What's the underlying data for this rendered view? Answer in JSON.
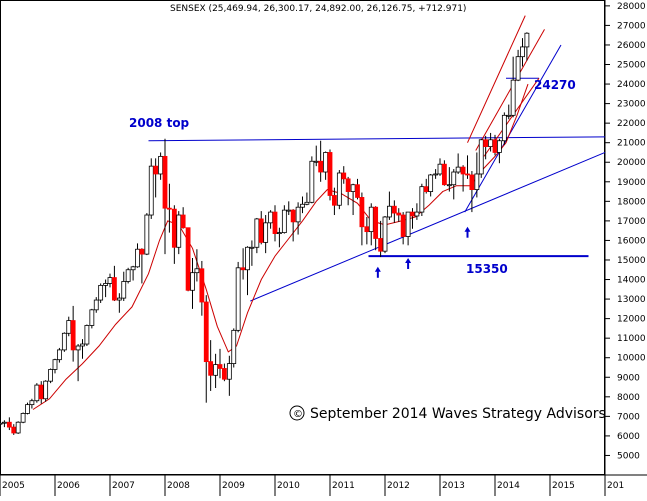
{
  "chart_data": {
    "type": "candlestick",
    "title": "SENSEX (25,469.94, 26,300.17, 24,892.00, 26,126.75, +712.971)",
    "x_ticks": [
      "2005",
      "2006",
      "2007",
      "2008",
      "2009",
      "2010",
      "2011",
      "2012",
      "2013",
      "2014",
      "2015",
      "201"
    ],
    "y_ticks": [
      5000,
      6000,
      7000,
      8000,
      9000,
      10000,
      11000,
      12000,
      13000,
      14000,
      15000,
      16000,
      17000,
      18000,
      19000,
      20000,
      21000,
      22000,
      23000,
      24000,
      25000,
      26000,
      27000,
      28000
    ],
    "ylim": [
      4000,
      28300
    ],
    "xlim": [
      2005.0,
      2016.0
    ],
    "colors": {
      "up": "#ffffff",
      "down": "#ff0000",
      "wick": "#000000",
      "ma": "#cc0000",
      "trend": "#0000cc",
      "channel": "#cc0000"
    },
    "annotations": {
      "top_label": "2008 top",
      "level_label": "24270",
      "support_label": "15350",
      "copyright": "September 2014 Waves Strategy Advisors",
      "copyright_symbol": "©"
    },
    "lines": {
      "top_line": {
        "from": [
          2007.7,
          21100
        ],
        "to": [
          2016.0,
          21300
        ]
      },
      "support_15350": {
        "from": [
          2011.7,
          15200
        ],
        "to": [
          2015.7,
          15200
        ]
      },
      "trend_main": {
        "from": [
          2009.55,
          12900
        ],
        "to": [
          2016.0,
          20500
        ]
      },
      "trend_2013": {
        "from": [
          2013.45,
          17450
        ],
        "to": [
          2015.2,
          26000
        ]
      },
      "level_24270": {
        "from": [
          2014.2,
          24300
        ],
        "to": [
          2014.8,
          24300
        ]
      },
      "channel_upper": {
        "from": [
          2013.5,
          21000
        ],
        "to": [
          2014.55,
          27500
        ]
      },
      "channel_mid": {
        "from": [
          2013.65,
          20600
        ],
        "to": [
          2014.9,
          26800
        ]
      },
      "channel_lower": {
        "from": [
          2013.8,
          20300
        ],
        "to": [
          2014.8,
          24300
        ]
      }
    },
    "arrows": [
      {
        "x": 2011.87,
        "y": 14550
      },
      {
        "x": 2012.42,
        "y": 15000
      },
      {
        "x": 2013.5,
        "y": 16600
      }
    ],
    "ohlc": [
      {
        "t": 2005.0,
        "o": 6600,
        "h": 6720,
        "l": 6250,
        "c": 6650
      },
      {
        "t": 2005.08,
        "o": 6650,
        "h": 6800,
        "l": 6450,
        "c": 6700
      },
      {
        "t": 2005.17,
        "o": 6700,
        "h": 6950,
        "l": 6300,
        "c": 6450
      },
      {
        "t": 2005.25,
        "o": 6450,
        "h": 6600,
        "l": 6050,
        "c": 6150
      },
      {
        "t": 2005.33,
        "o": 6150,
        "h": 6750,
        "l": 6100,
        "c": 6700
      },
      {
        "t": 2005.42,
        "o": 6700,
        "h": 7200,
        "l": 6650,
        "c": 7150
      },
      {
        "t": 2005.5,
        "o": 7150,
        "h": 7700,
        "l": 7100,
        "c": 7600
      },
      {
        "t": 2005.58,
        "o": 7600,
        "h": 7900,
        "l": 7400,
        "c": 7800
      },
      {
        "t": 2005.67,
        "o": 7800,
        "h": 8700,
        "l": 7700,
        "c": 8600
      },
      {
        "t": 2005.75,
        "o": 8600,
        "h": 8800,
        "l": 7650,
        "c": 7900
      },
      {
        "t": 2005.83,
        "o": 7900,
        "h": 8850,
        "l": 7750,
        "c": 8800
      },
      {
        "t": 2005.92,
        "o": 8800,
        "h": 9450,
        "l": 8700,
        "c": 9400
      },
      {
        "t": 2006.0,
        "o": 9400,
        "h": 9950,
        "l": 9200,
        "c": 9900
      },
      {
        "t": 2006.08,
        "o": 9900,
        "h": 10500,
        "l": 9750,
        "c": 10400
      },
      {
        "t": 2006.17,
        "o": 10400,
        "h": 11300,
        "l": 10300,
        "c": 11250
      },
      {
        "t": 2006.25,
        "o": 11250,
        "h": 12100,
        "l": 11100,
        "c": 11900
      },
      {
        "t": 2006.33,
        "o": 11900,
        "h": 12650,
        "l": 9800,
        "c": 10400
      },
      {
        "t": 2006.42,
        "o": 10400,
        "h": 10700,
        "l": 8800,
        "c": 10600
      },
      {
        "t": 2006.5,
        "o": 10600,
        "h": 10950,
        "l": 9950,
        "c": 10700
      },
      {
        "t": 2006.58,
        "o": 10700,
        "h": 11700,
        "l": 10600,
        "c": 11650
      },
      {
        "t": 2006.67,
        "o": 11650,
        "h": 12500,
        "l": 11500,
        "c": 12450
      },
      {
        "t": 2006.75,
        "o": 12450,
        "h": 13100,
        "l": 12300,
        "c": 12950
      },
      {
        "t": 2006.83,
        "o": 12950,
        "h": 13800,
        "l": 12800,
        "c": 13700
      },
      {
        "t": 2006.92,
        "o": 13700,
        "h": 14000,
        "l": 13100,
        "c": 13800
      },
      {
        "t": 2007.0,
        "o": 13800,
        "h": 14300,
        "l": 13600,
        "c": 14100
      },
      {
        "t": 2007.08,
        "o": 14100,
        "h": 14700,
        "l": 12900,
        "c": 12950
      },
      {
        "t": 2007.17,
        "o": 12950,
        "h": 13300,
        "l": 12300,
        "c": 13050
      },
      {
        "t": 2007.25,
        "o": 13050,
        "h": 14400,
        "l": 12900,
        "c": 13900
      },
      {
        "t": 2007.33,
        "o": 13900,
        "h": 14600,
        "l": 13800,
        "c": 14500
      },
      {
        "t": 2007.42,
        "o": 14500,
        "h": 14700,
        "l": 13950,
        "c": 14650
      },
      {
        "t": 2007.5,
        "o": 14650,
        "h": 15850,
        "l": 14600,
        "c": 15550
      },
      {
        "t": 2007.58,
        "o": 15550,
        "h": 15600,
        "l": 13800,
        "c": 15300
      },
      {
        "t": 2007.67,
        "o": 15300,
        "h": 17400,
        "l": 15250,
        "c": 17300
      },
      {
        "t": 2007.75,
        "o": 17300,
        "h": 20200,
        "l": 17100,
        "c": 19800
      },
      {
        "t": 2007.83,
        "o": 19800,
        "h": 20200,
        "l": 18200,
        "c": 19400
      },
      {
        "t": 2007.92,
        "o": 19400,
        "h": 20500,
        "l": 19100,
        "c": 20300
      },
      {
        "t": 2008.0,
        "o": 20300,
        "h": 21200,
        "l": 15300,
        "c": 17650
      },
      {
        "t": 2008.08,
        "o": 17650,
        "h": 18900,
        "l": 16400,
        "c": 17600
      },
      {
        "t": 2008.17,
        "o": 17600,
        "h": 17800,
        "l": 14800,
        "c": 15650
      },
      {
        "t": 2008.25,
        "o": 15650,
        "h": 17500,
        "l": 15300,
        "c": 17300
      },
      {
        "t": 2008.33,
        "o": 17300,
        "h": 17700,
        "l": 16600,
        "c": 16650
      },
      {
        "t": 2008.42,
        "o": 16650,
        "h": 16650,
        "l": 13400,
        "c": 13450
      },
      {
        "t": 2008.5,
        "o": 13450,
        "h": 15100,
        "l": 12500,
        "c": 14350
      },
      {
        "t": 2008.58,
        "o": 14350,
        "h": 15550,
        "l": 13900,
        "c": 14550
      },
      {
        "t": 2008.67,
        "o": 14550,
        "h": 14950,
        "l": 12150,
        "c": 12850
      },
      {
        "t": 2008.75,
        "o": 12850,
        "h": 13200,
        "l": 7700,
        "c": 9800
      },
      {
        "t": 2008.83,
        "o": 9800,
        "h": 10900,
        "l": 8300,
        "c": 9100
      },
      {
        "t": 2008.92,
        "o": 9100,
        "h": 10200,
        "l": 8450,
        "c": 9650
      },
      {
        "t": 2009.0,
        "o": 9650,
        "h": 10450,
        "l": 8950,
        "c": 9450
      },
      {
        "t": 2009.08,
        "o": 9450,
        "h": 9700,
        "l": 8800,
        "c": 8900
      },
      {
        "t": 2009.17,
        "o": 8900,
        "h": 10100,
        "l": 8050,
        "c": 9700
      },
      {
        "t": 2009.25,
        "o": 9700,
        "h": 11500,
        "l": 9500,
        "c": 11400
      },
      {
        "t": 2009.33,
        "o": 11400,
        "h": 14900,
        "l": 11300,
        "c": 14600
      },
      {
        "t": 2009.42,
        "o": 14600,
        "h": 15600,
        "l": 14000,
        "c": 14500
      },
      {
        "t": 2009.5,
        "o": 14500,
        "h": 15700,
        "l": 13200,
        "c": 15650
      },
      {
        "t": 2009.58,
        "o": 15650,
        "h": 16000,
        "l": 14700,
        "c": 15650
      },
      {
        "t": 2009.67,
        "o": 15650,
        "h": 17150,
        "l": 15350,
        "c": 17100
      },
      {
        "t": 2009.75,
        "o": 17100,
        "h": 17500,
        "l": 15800,
        "c": 15900
      },
      {
        "t": 2009.83,
        "o": 15900,
        "h": 17300,
        "l": 15350,
        "c": 16900
      },
      {
        "t": 2009.92,
        "o": 16900,
        "h": 17550,
        "l": 16600,
        "c": 17450
      },
      {
        "t": 2010.0,
        "o": 17450,
        "h": 17800,
        "l": 15950,
        "c": 16350
      },
      {
        "t": 2010.08,
        "o": 16350,
        "h": 16650,
        "l": 15650,
        "c": 16400
      },
      {
        "t": 2010.17,
        "o": 16400,
        "h": 17800,
        "l": 16350,
        "c": 17550
      },
      {
        "t": 2010.25,
        "o": 17550,
        "h": 18000,
        "l": 17300,
        "c": 17550
      },
      {
        "t": 2010.33,
        "o": 17550,
        "h": 17600,
        "l": 15950,
        "c": 16950
      },
      {
        "t": 2010.42,
        "o": 16950,
        "h": 17950,
        "l": 16300,
        "c": 17700
      },
      {
        "t": 2010.5,
        "o": 17700,
        "h": 18250,
        "l": 17400,
        "c": 17850
      },
      {
        "t": 2010.58,
        "o": 17850,
        "h": 18450,
        "l": 17800,
        "c": 17950
      },
      {
        "t": 2010.67,
        "o": 17950,
        "h": 20300,
        "l": 17900,
        "c": 20050
      },
      {
        "t": 2010.75,
        "o": 20050,
        "h": 20850,
        "l": 19800,
        "c": 20050
      },
      {
        "t": 2010.83,
        "o": 20050,
        "h": 21100,
        "l": 19000,
        "c": 19500
      },
      {
        "t": 2010.92,
        "o": 19500,
        "h": 20550,
        "l": 19100,
        "c": 20500
      },
      {
        "t": 2011.0,
        "o": 20500,
        "h": 20650,
        "l": 18050,
        "c": 18300
      },
      {
        "t": 2011.08,
        "o": 18300,
        "h": 18700,
        "l": 17300,
        "c": 17800
      },
      {
        "t": 2011.17,
        "o": 17800,
        "h": 19600,
        "l": 17600,
        "c": 19450
      },
      {
        "t": 2011.25,
        "o": 19450,
        "h": 19800,
        "l": 18900,
        "c": 19150
      },
      {
        "t": 2011.33,
        "o": 19150,
        "h": 19250,
        "l": 17800,
        "c": 18500
      },
      {
        "t": 2011.42,
        "o": 18500,
        "h": 18900,
        "l": 17300,
        "c": 18850
      },
      {
        "t": 2011.5,
        "o": 18850,
        "h": 19150,
        "l": 18100,
        "c": 18200
      },
      {
        "t": 2011.58,
        "o": 18200,
        "h": 18450,
        "l": 15750,
        "c": 16700
      },
      {
        "t": 2011.67,
        "o": 16700,
        "h": 17200,
        "l": 15800,
        "c": 16450
      },
      {
        "t": 2011.75,
        "o": 16450,
        "h": 17900,
        "l": 15750,
        "c": 17700
      },
      {
        "t": 2011.83,
        "o": 17700,
        "h": 17750,
        "l": 15500,
        "c": 16100
      },
      {
        "t": 2011.92,
        "o": 16100,
        "h": 17000,
        "l": 15150,
        "c": 15450
      },
      {
        "t": 2012.0,
        "o": 15450,
        "h": 17250,
        "l": 15350,
        "c": 17200
      },
      {
        "t": 2012.08,
        "o": 17200,
        "h": 18500,
        "l": 17050,
        "c": 17750
      },
      {
        "t": 2012.17,
        "o": 17750,
        "h": 18050,
        "l": 16900,
        "c": 17400
      },
      {
        "t": 2012.25,
        "o": 17400,
        "h": 17650,
        "l": 16950,
        "c": 17300
      },
      {
        "t": 2012.33,
        "o": 17300,
        "h": 17450,
        "l": 15800,
        "c": 16200
      },
      {
        "t": 2012.42,
        "o": 16200,
        "h": 17450,
        "l": 15750,
        "c": 17450
      },
      {
        "t": 2012.5,
        "o": 17450,
        "h": 17650,
        "l": 16600,
        "c": 17250
      },
      {
        "t": 2012.58,
        "o": 17250,
        "h": 17900,
        "l": 17050,
        "c": 17450
      },
      {
        "t": 2012.67,
        "o": 17450,
        "h": 18900,
        "l": 17250,
        "c": 18750
      },
      {
        "t": 2012.75,
        "o": 18750,
        "h": 19150,
        "l": 18400,
        "c": 18500
      },
      {
        "t": 2012.83,
        "o": 18500,
        "h": 19400,
        "l": 18250,
        "c": 19350
      },
      {
        "t": 2012.92,
        "o": 19350,
        "h": 19650,
        "l": 19150,
        "c": 19400
      },
      {
        "t": 2013.0,
        "o": 19400,
        "h": 20200,
        "l": 19300,
        "c": 19900
      },
      {
        "t": 2013.08,
        "o": 19900,
        "h": 20100,
        "l": 18800,
        "c": 18850
      },
      {
        "t": 2013.17,
        "o": 18850,
        "h": 19750,
        "l": 18500,
        "c": 18850
      },
      {
        "t": 2013.25,
        "o": 18850,
        "h": 19650,
        "l": 18100,
        "c": 19500
      },
      {
        "t": 2013.33,
        "o": 19500,
        "h": 20450,
        "l": 19400,
        "c": 19750
      },
      {
        "t": 2013.42,
        "o": 19750,
        "h": 19850,
        "l": 18500,
        "c": 19400
      },
      {
        "t": 2013.5,
        "o": 19400,
        "h": 20350,
        "l": 19150,
        "c": 19350
      },
      {
        "t": 2013.58,
        "o": 19350,
        "h": 19550,
        "l": 17450,
        "c": 18600
      },
      {
        "t": 2013.67,
        "o": 18600,
        "h": 20500,
        "l": 18200,
        "c": 19400
      },
      {
        "t": 2013.75,
        "o": 19400,
        "h": 21200,
        "l": 19200,
        "c": 21150
      },
      {
        "t": 2013.83,
        "o": 21150,
        "h": 21350,
        "l": 20150,
        "c": 20800
      },
      {
        "t": 2013.92,
        "o": 20800,
        "h": 21500,
        "l": 20550,
        "c": 21150
      },
      {
        "t": 2014.0,
        "o": 21150,
        "h": 21400,
        "l": 20350,
        "c": 20500
      },
      {
        "t": 2014.08,
        "o": 20500,
        "h": 21200,
        "l": 19950,
        "c": 21100
      },
      {
        "t": 2014.17,
        "o": 21100,
        "h": 22550,
        "l": 20900,
        "c": 22400
      },
      {
        "t": 2014.25,
        "o": 22400,
        "h": 22950,
        "l": 22200,
        "c": 22400
      },
      {
        "t": 2014.33,
        "o": 22400,
        "h": 25400,
        "l": 22300,
        "c": 24200
      },
      {
        "t": 2014.42,
        "o": 24200,
        "h": 25750,
        "l": 24150,
        "c": 25400
      },
      {
        "t": 2014.5,
        "o": 25400,
        "h": 26350,
        "l": 24900,
        "c": 25900
      },
      {
        "t": 2014.58,
        "o": 25900,
        "h": 26650,
        "l": 25200,
        "c": 26600
      }
    ],
    "ma": [
      [
        2005.6,
        7350
      ],
      [
        2005.9,
        7900
      ],
      [
        2006.2,
        8900
      ],
      [
        2006.5,
        9700
      ],
      [
        2006.8,
        10600
      ],
      [
        2007.1,
        11700
      ],
      [
        2007.4,
        12600
      ],
      [
        2007.7,
        14300
      ],
      [
        2007.9,
        16000
      ],
      [
        2008.05,
        17000
      ],
      [
        2008.25,
        16800
      ],
      [
        2008.5,
        15600
      ],
      [
        2008.75,
        13500
      ],
      [
        2008.95,
        11600
      ],
      [
        2009.15,
        10300
      ],
      [
        2009.3,
        10600
      ],
      [
        2009.5,
        12300
      ],
      [
        2009.75,
        14000
      ],
      [
        2010.0,
        15200
      ],
      [
        2010.25,
        16100
      ],
      [
        2010.5,
        17000
      ],
      [
        2010.75,
        18000
      ],
      [
        2010.95,
        18600
      ],
      [
        2011.2,
        18400
      ],
      [
        2011.5,
        17900
      ],
      [
        2011.75,
        17000
      ],
      [
        2012.0,
        16800
      ],
      [
        2012.3,
        17000
      ],
      [
        2012.55,
        17200
      ],
      [
        2012.8,
        17800
      ],
      [
        2013.05,
        18500
      ],
      [
        2013.3,
        18800
      ],
      [
        2013.55,
        18800
      ],
      [
        2013.8,
        19700
      ],
      [
        2014.0,
        20300
      ],
      [
        2014.2,
        21000
      ],
      [
        2014.4,
        22400
      ],
      [
        2014.6,
        24000
      ]
    ]
  }
}
